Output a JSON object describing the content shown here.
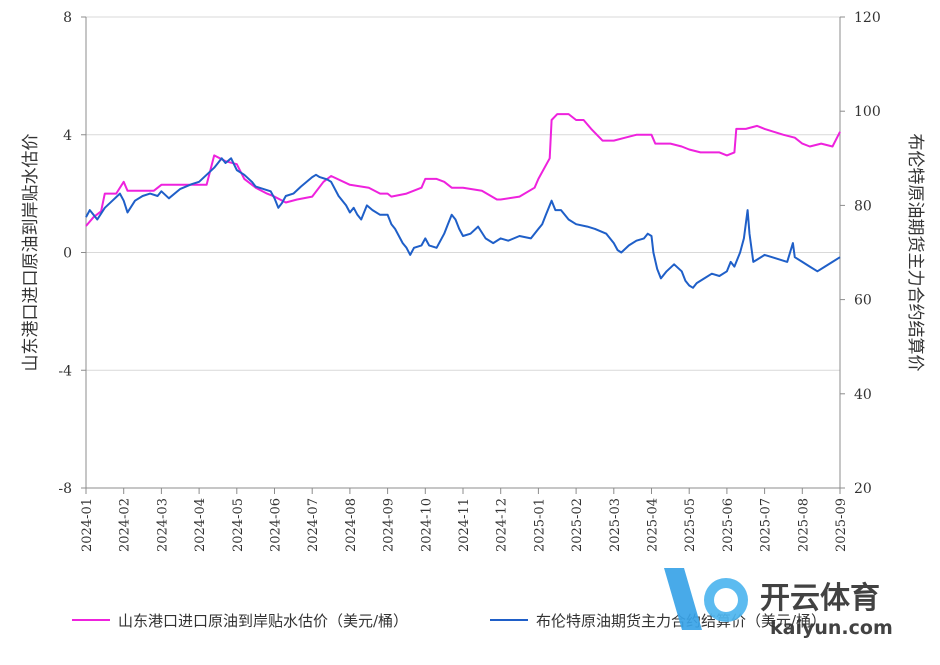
{
  "chart_data": {
    "type": "line",
    "title": "",
    "y_left": {
      "label": "山东港口进口原油到岸贴水估价",
      "ylim": [
        -8,
        8
      ],
      "ticks": [
        -8,
        -4,
        0,
        4,
        8
      ]
    },
    "y_right": {
      "label": "布伦特原油期货主力合约结算价",
      "ylim": [
        20,
        120
      ],
      "ticks": [
        20,
        40,
        60,
        80,
        100,
        120
      ]
    },
    "x_categories": [
      "2024-01",
      "2024-02",
      "2024-03",
      "2024-04",
      "2024-05",
      "2024-06",
      "2024-07",
      "2024-08",
      "2024-09",
      "2024-10",
      "2024-11",
      "2024-12",
      "2025-01",
      "2025-02",
      "2025-03",
      "2025-04",
      "2025-05",
      "2025-06",
      "2025-07",
      "2025-08",
      "2025-09"
    ],
    "grid": "horizontal",
    "legend_position": "bottom",
    "series": [
      {
        "name": "山东港口进口原油到岸贴水估价（美元/桶）",
        "axis": "left",
        "color": "#ee22dd",
        "points": [
          [
            0,
            0.9
          ],
          [
            0.2,
            1.2
          ],
          [
            0.4,
            1.4
          ],
          [
            0.5,
            2.0
          ],
          [
            0.8,
            2.0
          ],
          [
            1.0,
            2.4
          ],
          [
            1.1,
            2.1
          ],
          [
            1.5,
            2.1
          ],
          [
            1.8,
            2.1
          ],
          [
            2.0,
            2.3
          ],
          [
            2.5,
            2.3
          ],
          [
            3.0,
            2.3
          ],
          [
            3.2,
            2.3
          ],
          [
            3.4,
            3.3
          ],
          [
            3.7,
            3.1
          ],
          [
            4.0,
            3.0
          ],
          [
            4.2,
            2.5
          ],
          [
            4.5,
            2.2
          ],
          [
            4.8,
            2.0
          ],
          [
            5.0,
            1.9
          ],
          [
            5.3,
            1.7
          ],
          [
            5.6,
            1.8
          ],
          [
            6.0,
            1.9
          ],
          [
            6.3,
            2.4
          ],
          [
            6.5,
            2.6
          ],
          [
            7.0,
            2.3
          ],
          [
            7.5,
            2.2
          ],
          [
            7.8,
            2.0
          ],
          [
            8.0,
            2.0
          ],
          [
            8.1,
            1.9
          ],
          [
            8.5,
            2.0
          ],
          [
            8.9,
            2.2
          ],
          [
            9.0,
            2.5
          ],
          [
            9.3,
            2.5
          ],
          [
            9.5,
            2.4
          ],
          [
            9.7,
            2.2
          ],
          [
            10.0,
            2.2
          ],
          [
            10.5,
            2.1
          ],
          [
            10.9,
            1.8
          ],
          [
            11.0,
            1.8
          ],
          [
            11.5,
            1.9
          ],
          [
            11.9,
            2.2
          ],
          [
            12.0,
            2.5
          ],
          [
            12.3,
            3.2
          ],
          [
            12.35,
            4.5
          ],
          [
            12.5,
            4.7
          ],
          [
            12.8,
            4.7
          ],
          [
            13.0,
            4.5
          ],
          [
            13.2,
            4.5
          ],
          [
            13.4,
            4.2
          ],
          [
            13.7,
            3.8
          ],
          [
            14.0,
            3.8
          ],
          [
            14.3,
            3.9
          ],
          [
            14.6,
            4.0
          ],
          [
            15.0,
            4.0
          ],
          [
            15.1,
            3.7
          ],
          [
            15.5,
            3.7
          ],
          [
            15.8,
            3.6
          ],
          [
            16.0,
            3.5
          ],
          [
            16.3,
            3.4
          ],
          [
            16.8,
            3.4
          ],
          [
            17.0,
            3.3
          ],
          [
            17.2,
            3.4
          ],
          [
            17.25,
            4.2
          ],
          [
            17.5,
            4.2
          ],
          [
            17.8,
            4.3
          ],
          [
            18.0,
            4.2
          ],
          [
            18.5,
            4.0
          ],
          [
            18.8,
            3.9
          ],
          [
            19.0,
            3.7
          ],
          [
            19.2,
            3.6
          ],
          [
            19.5,
            3.7
          ],
          [
            19.8,
            3.6
          ],
          [
            20.0,
            4.1
          ]
        ]
      },
      {
        "name": "布伦特原油期货主力合约结算价（美元/桶）",
        "axis": "right",
        "color": "#1f5fc8",
        "points": [
          [
            0,
            77.5
          ],
          [
            0.1,
            79
          ],
          [
            0.3,
            77
          ],
          [
            0.5,
            79.5
          ],
          [
            0.7,
            81
          ],
          [
            0.9,
            82.5
          ],
          [
            1.0,
            81
          ],
          [
            1.1,
            78.5
          ],
          [
            1.3,
            81
          ],
          [
            1.5,
            82
          ],
          [
            1.7,
            82.5
          ],
          [
            1.9,
            82
          ],
          [
            2.0,
            83
          ],
          [
            2.2,
            81.5
          ],
          [
            2.5,
            83.5
          ],
          [
            2.8,
            84.5
          ],
          [
            3.0,
            85
          ],
          [
            3.2,
            86.5
          ],
          [
            3.4,
            88
          ],
          [
            3.5,
            89
          ],
          [
            3.6,
            90
          ],
          [
            3.7,
            89
          ],
          [
            3.85,
            90
          ],
          [
            4.0,
            87.5
          ],
          [
            4.2,
            86.5
          ],
          [
            4.4,
            85
          ],
          [
            4.5,
            84
          ],
          [
            4.7,
            83.5
          ],
          [
            4.9,
            83
          ],
          [
            5.0,
            81.5
          ],
          [
            5.1,
            79.5
          ],
          [
            5.2,
            80.5
          ],
          [
            5.3,
            82
          ],
          [
            5.5,
            82.5
          ],
          [
            5.7,
            84
          ],
          [
            6.0,
            86
          ],
          [
            6.1,
            86.5
          ],
          [
            6.2,
            86
          ],
          [
            6.4,
            85.5
          ],
          [
            6.5,
            85
          ],
          [
            6.7,
            82
          ],
          [
            6.9,
            80
          ],
          [
            7.0,
            78.5
          ],
          [
            7.1,
            79.5
          ],
          [
            7.2,
            78
          ],
          [
            7.3,
            77
          ],
          [
            7.45,
            80
          ],
          [
            7.6,
            79
          ],
          [
            7.8,
            78
          ],
          [
            8.0,
            78
          ],
          [
            8.1,
            76
          ],
          [
            8.2,
            75
          ],
          [
            8.4,
            72
          ],
          [
            8.5,
            71
          ],
          [
            8.6,
            69.5
          ],
          [
            8.7,
            71
          ],
          [
            8.9,
            71.5
          ],
          [
            9.0,
            73
          ],
          [
            9.1,
            71.5
          ],
          [
            9.3,
            71
          ],
          [
            9.5,
            74
          ],
          [
            9.6,
            76
          ],
          [
            9.7,
            78
          ],
          [
            9.8,
            77
          ],
          [
            9.9,
            75
          ],
          [
            10.0,
            73.5
          ],
          [
            10.2,
            74
          ],
          [
            10.4,
            75.5
          ],
          [
            10.6,
            73
          ],
          [
            10.8,
            72
          ],
          [
            11.0,
            73
          ],
          [
            11.2,
            72.5
          ],
          [
            11.5,
            73.5
          ],
          [
            11.8,
            73
          ],
          [
            12.0,
            75
          ],
          [
            12.1,
            76
          ],
          [
            12.2,
            78
          ],
          [
            12.3,
            80
          ],
          [
            12.35,
            81
          ],
          [
            12.45,
            79
          ],
          [
            12.6,
            79
          ],
          [
            12.8,
            77
          ],
          [
            13.0,
            76
          ],
          [
            13.3,
            75.5
          ],
          [
            13.5,
            75
          ],
          [
            13.8,
            74
          ],
          [
            14.0,
            72
          ],
          [
            14.1,
            70.5
          ],
          [
            14.2,
            70
          ],
          [
            14.4,
            71.5
          ],
          [
            14.6,
            72.5
          ],
          [
            14.8,
            73
          ],
          [
            14.9,
            74
          ],
          [
            15.0,
            73.5
          ],
          [
            15.05,
            70
          ],
          [
            15.15,
            66.5
          ],
          [
            15.25,
            64.5
          ],
          [
            15.4,
            66
          ],
          [
            15.6,
            67.5
          ],
          [
            15.8,
            66
          ],
          [
            15.9,
            64
          ],
          [
            16.0,
            63
          ],
          [
            16.1,
            62.5
          ],
          [
            16.2,
            63.5
          ],
          [
            16.4,
            64.5
          ],
          [
            16.6,
            65.5
          ],
          [
            16.8,
            65
          ],
          [
            17.0,
            66
          ],
          [
            17.1,
            68
          ],
          [
            17.2,
            67
          ],
          [
            17.35,
            70
          ],
          [
            17.45,
            73
          ],
          [
            17.55,
            79
          ],
          [
            17.6,
            74
          ],
          [
            17.7,
            68
          ],
          [
            17.8,
            68.5
          ],
          [
            18.0,
            69.5
          ],
          [
            18.2,
            69
          ],
          [
            18.4,
            68.5
          ],
          [
            18.6,
            68
          ],
          [
            18.75,
            72
          ],
          [
            18.8,
            69
          ],
          [
            19.0,
            68
          ],
          [
            19.2,
            67
          ],
          [
            19.4,
            66
          ],
          [
            19.6,
            67
          ],
          [
            19.8,
            68
          ],
          [
            20.0,
            69
          ]
        ]
      }
    ]
  }
}
